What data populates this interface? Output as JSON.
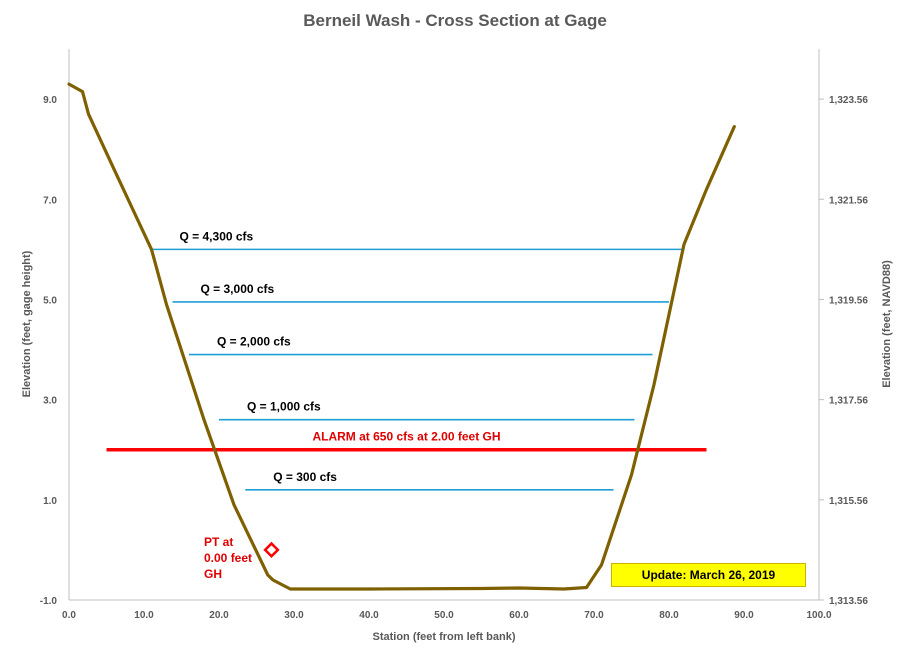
{
  "chart_data": {
    "type": "line",
    "title": "Berneil Wash - Cross Section at Gage",
    "xlabel": "Station (feet from left bank)",
    "ylabel_left": "Elevation (feet, gage height)",
    "ylabel_right": "Elevation (feet, NAVD88)",
    "xlim": [
      0,
      100
    ],
    "ylim_left": [
      -1.0,
      10.0
    ],
    "ylim_right": [
      1313.56,
      1324.56
    ],
    "x_ticks": [
      "0.0",
      "10.0",
      "20.0",
      "30.0",
      "40.0",
      "50.0",
      "60.0",
      "70.0",
      "80.0",
      "90.0",
      "100.0"
    ],
    "y_ticks_left": [
      "-1.0",
      "1.0",
      "3.0",
      "5.0",
      "7.0",
      "9.0"
    ],
    "y_ticks_right": [
      "1,313.56",
      "1,315.56",
      "1,317.56",
      "1,319.56",
      "1,321.56",
      "1,323.56"
    ],
    "grid": false,
    "series": [
      {
        "color": "#7f6000",
        "x": [
          0.0,
          1.8,
          2.6,
          6.0,
          11.0,
          13.0,
          18.0,
          22.0,
          26.5,
          27.2,
          29.5,
          40.0,
          55.0,
          60.0,
          66.0,
          69.0,
          71.0,
          75.0,
          78.0,
          82.0,
          85.0,
          88.7
        ],
        "y": [
          9.3,
          9.15,
          8.7,
          7.6,
          6.0,
          4.9,
          2.6,
          0.9,
          -0.5,
          -0.6,
          -0.78,
          -0.78,
          -0.77,
          -0.76,
          -0.78,
          -0.75,
          -0.3,
          1.5,
          3.3,
          6.1,
          7.2,
          8.45
        ]
      }
    ],
    "flow_lines": [
      {
        "label": "Q = 4,300 cfs",
        "y": 6.0,
        "x_start": 11.0,
        "x_end": 82.0
      },
      {
        "label": "Q = 3,000 cfs",
        "y": 4.95,
        "x_start": 13.8,
        "x_end": 80.0
      },
      {
        "label": "Q = 2,000 cfs",
        "y": 3.9,
        "x_start": 16.0,
        "x_end": 77.8
      },
      {
        "label": "Q = 1,000 cfs",
        "y": 2.6,
        "x_start": 20.0,
        "x_end": 75.4
      },
      {
        "label": "Q = 300 cfs",
        "y": 1.2,
        "x_start": 23.5,
        "x_end": 72.6
      }
    ],
    "flow_line_color": "#1e9fd5",
    "alarm": {
      "label": "ALARM at 650 cfs at 2.00 feet GH",
      "y": 2.0,
      "x_start": 5.0,
      "x_end": 85.0,
      "color": "#ff0000"
    },
    "pt_marker": {
      "label_lines": [
        "PT at",
        "0.00 feet",
        "GH"
      ],
      "x": 27.0,
      "y": 0.0,
      "color": "#ff0000"
    },
    "update_note": "Update: March 26, 2019"
  }
}
